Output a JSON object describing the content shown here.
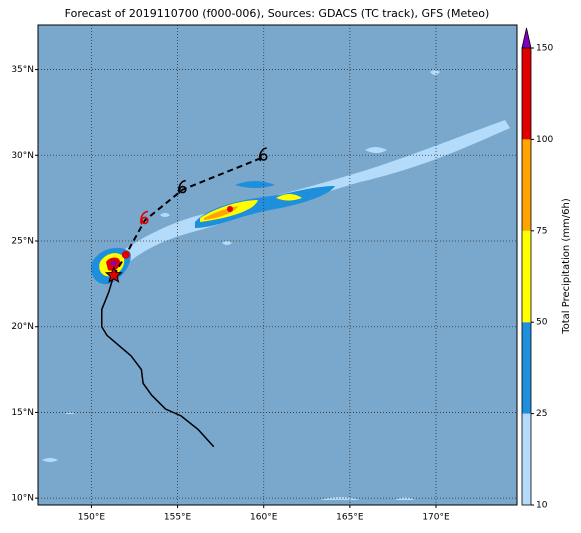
{
  "chart_data": {
    "type": "map",
    "title": "Forecast of 2019110700 (f000-006), Sources: GDACS (TC track), GFS (Meteo)",
    "xlim": [
      146.9,
      174.7
    ],
    "ylim": [
      9.6,
      37.6
    ],
    "xticks": [
      {
        "value": 150,
        "label": "150°E"
      },
      {
        "value": 155,
        "label": "155°E"
      },
      {
        "value": 160,
        "label": "160°E"
      },
      {
        "value": 165,
        "label": "165°E"
      },
      {
        "value": 170,
        "label": "170°E"
      }
    ],
    "yticks": [
      {
        "value": 10,
        "label": "10°N"
      },
      {
        "value": 15,
        "label": "15°N"
      },
      {
        "value": 20,
        "label": "20°N"
      },
      {
        "value": 25,
        "label": "25°N"
      },
      {
        "value": 30,
        "label": "30°N"
      },
      {
        "value": 35,
        "label": "35°N"
      }
    ],
    "grid": true,
    "colorbar": {
      "label": "Total Precipitation (mm/6h)",
      "levels": [
        10,
        25,
        50,
        75,
        100,
        150
      ],
      "colors": [
        "#b4dcfa",
        "#1e8fdc",
        "#ffff00",
        "#ffa500",
        "#e00000"
      ],
      "extend_color": "#8000c0"
    },
    "past_track": {
      "color": "#000000",
      "lon": [
        157.1,
        156.2,
        155.2,
        154.3,
        153.5,
        153.0,
        152.9,
        152.3,
        151.6,
        150.9,
        150.6,
        150.6,
        151.0,
        151.3
      ],
      "lat": [
        13.0,
        14.0,
        14.8,
        15.2,
        16.0,
        16.7,
        17.5,
        18.3,
        18.9,
        19.5,
        20.0,
        21.0,
        22.0,
        23.0
      ]
    },
    "current_position": {
      "lon": 151.3,
      "lat": 23.0,
      "color": "#e00000"
    },
    "forecast_track": {
      "lon": [
        151.3,
        152.0,
        153.1,
        155.3,
        160.0
      ],
      "lat": [
        23.0,
        24.2,
        26.2,
        28.0,
        29.9
      ],
      "colors": [
        "#e00000",
        "#e00000",
        "#e00000",
        "#000000",
        "#000000"
      ]
    }
  }
}
